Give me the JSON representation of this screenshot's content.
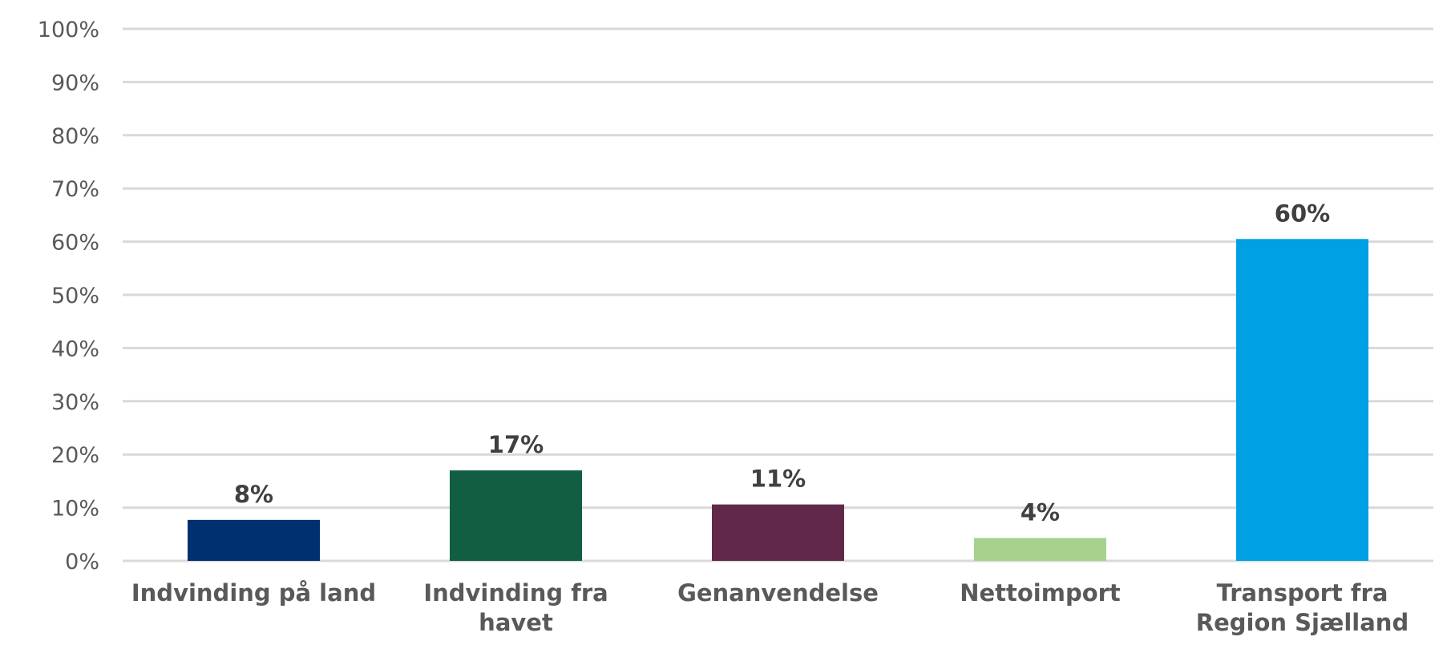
{
  "chart_data": {
    "type": "bar",
    "categories": [
      [
        "Indvinding på land"
      ],
      [
        "Indvinding fra",
        "havet"
      ],
      [
        "Genanvendelse"
      ],
      [
        "Nettoimport"
      ],
      [
        "Transport fra",
        "Region Sjælland"
      ]
    ],
    "values": [
      7.7,
      17,
      10.6,
      4.3,
      60.5
    ],
    "data_labels": [
      "8%",
      "17%",
      "11%",
      "4%",
      "60%"
    ],
    "colors": [
      "#003070",
      "#125e43",
      "#62284a",
      "#a9d18e",
      "#00a0e4"
    ],
    "ylim": [
      0,
      100
    ],
    "yticks": [
      0,
      10,
      20,
      30,
      40,
      50,
      60,
      70,
      80,
      90,
      100
    ],
    "ytick_labels": [
      "0%",
      "10%",
      "20%",
      "30%",
      "40%",
      "50%",
      "60%",
      "70%",
      "80%",
      "90%",
      "100%"
    ],
    "grid": true,
    "title": "",
    "xlabel": "",
    "ylabel": ""
  }
}
